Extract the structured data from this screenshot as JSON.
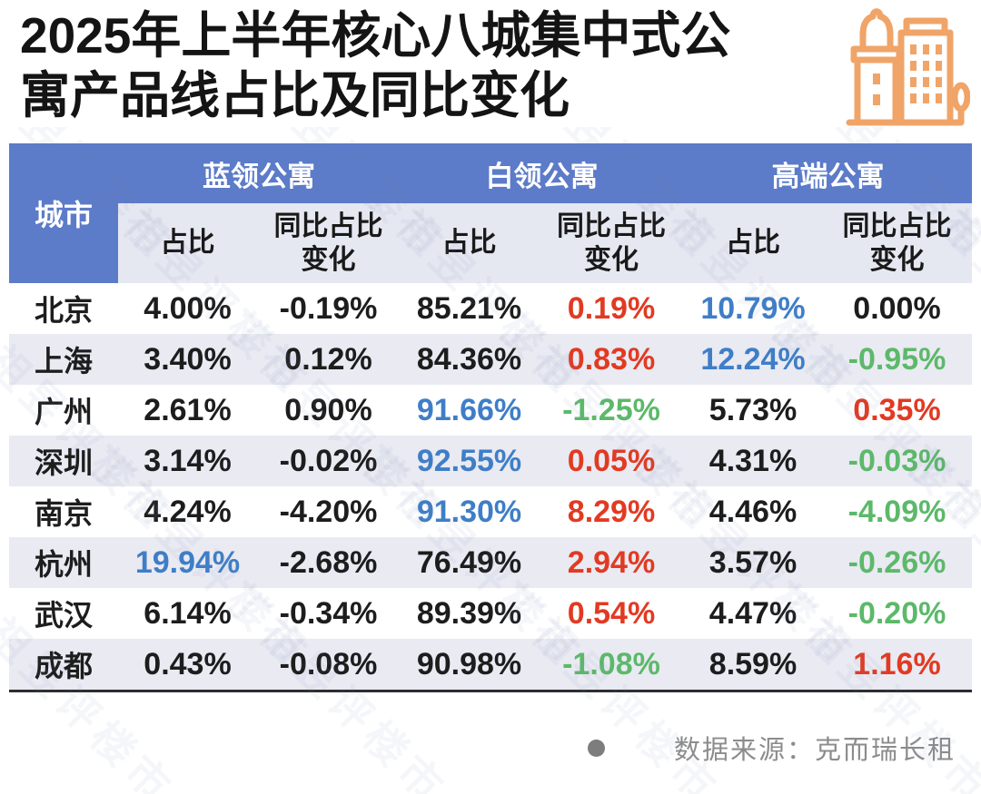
{
  "title": {
    "line1": "2025年上半年核心八城集中式公",
    "line2": "寓产品线占比及同比变化"
  },
  "header": {
    "city": "城市",
    "groups": [
      {
        "label": "蓝领公寓"
      },
      {
        "label": "白领公寓"
      },
      {
        "label": "高端公寓"
      }
    ],
    "sub": {
      "share": "占比",
      "yoy": "同比占比变化"
    }
  },
  "table": {
    "rows": [
      {
        "city": "北京",
        "cells": [
          {
            "v": "4.00%",
            "c": "black"
          },
          {
            "v": "-0.19%",
            "c": "black"
          },
          {
            "v": "85.21%",
            "c": "black"
          },
          {
            "v": "0.19%",
            "c": "red"
          },
          {
            "v": "10.79%",
            "c": "blue"
          },
          {
            "v": "0.00%",
            "c": "black"
          }
        ]
      },
      {
        "city": "上海",
        "cells": [
          {
            "v": "3.40%",
            "c": "black"
          },
          {
            "v": "0.12%",
            "c": "black"
          },
          {
            "v": "84.36%",
            "c": "black"
          },
          {
            "v": "0.83%",
            "c": "red"
          },
          {
            "v": "12.24%",
            "c": "blue"
          },
          {
            "v": "-0.95%",
            "c": "green"
          }
        ]
      },
      {
        "city": "广州",
        "cells": [
          {
            "v": "2.61%",
            "c": "black"
          },
          {
            "v": "0.90%",
            "c": "black"
          },
          {
            "v": "91.66%",
            "c": "blue"
          },
          {
            "v": "-1.25%",
            "c": "green"
          },
          {
            "v": "5.73%",
            "c": "black"
          },
          {
            "v": "0.35%",
            "c": "red"
          }
        ]
      },
      {
        "city": "深圳",
        "cells": [
          {
            "v": "3.14%",
            "c": "black"
          },
          {
            "v": "-0.02%",
            "c": "black"
          },
          {
            "v": "92.55%",
            "c": "blue"
          },
          {
            "v": "0.05%",
            "c": "red"
          },
          {
            "v": "4.31%",
            "c": "black"
          },
          {
            "v": "-0.03%",
            "c": "green"
          }
        ]
      },
      {
        "city": "南京",
        "cells": [
          {
            "v": "4.24%",
            "c": "black"
          },
          {
            "v": "-4.20%",
            "c": "black"
          },
          {
            "v": "91.30%",
            "c": "blue"
          },
          {
            "v": "8.29%",
            "c": "red"
          },
          {
            "v": "4.46%",
            "c": "black"
          },
          {
            "v": "-4.09%",
            "c": "green"
          }
        ]
      },
      {
        "city": "杭州",
        "cells": [
          {
            "v": "19.94%",
            "c": "blue"
          },
          {
            "v": "-2.68%",
            "c": "black"
          },
          {
            "v": "76.49%",
            "c": "black"
          },
          {
            "v": "2.94%",
            "c": "red"
          },
          {
            "v": "3.57%",
            "c": "black"
          },
          {
            "v": "-0.26%",
            "c": "green"
          }
        ]
      },
      {
        "city": "武汉",
        "cells": [
          {
            "v": "6.14%",
            "c": "black"
          },
          {
            "v": "-0.34%",
            "c": "black"
          },
          {
            "v": "89.39%",
            "c": "black"
          },
          {
            "v": "0.54%",
            "c": "red"
          },
          {
            "v": "4.47%",
            "c": "black"
          },
          {
            "v": "-0.20%",
            "c": "green"
          }
        ]
      },
      {
        "city": "成都",
        "cells": [
          {
            "v": "0.43%",
            "c": "black"
          },
          {
            "v": "-0.08%",
            "c": "black"
          },
          {
            "v": "90.98%",
            "c": "black"
          },
          {
            "v": "-1.08%",
            "c": "green"
          },
          {
            "v": "8.59%",
            "c": "black"
          },
          {
            "v": "1.16%",
            "c": "red"
          }
        ]
      }
    ]
  },
  "footer": {
    "source": "数据来源：克而瑞长租"
  },
  "watermark": {
    "text": "丁祖昱评楼市"
  },
  "colors": {
    "black": "#1d1d1d",
    "red": "#E23A22",
    "green": "#5CB96A",
    "blue": "#3F7EC7",
    "header_blue": "#5C7BC9",
    "row_alt": "#E9EAF2",
    "subheader_bg": "#E6E8F1",
    "accent_orange": "#F0A468",
    "source_gray": "#8c8c8c"
  },
  "chart_data": {
    "type": "table",
    "title": "2025年上半年核心八城集中式公寓产品线占比及同比变化",
    "column_groups": [
      "蓝领公寓",
      "白领公寓",
      "高端公寓"
    ],
    "columns": [
      "城市",
      "蓝领公寓-占比",
      "蓝领公寓-同比占比变化",
      "白领公寓-占比",
      "白领公寓-同比占比变化",
      "高端公寓-占比",
      "高端公寓-同比占比变化"
    ],
    "rows": [
      [
        "北京",
        "4.00%",
        "-0.19%",
        "85.21%",
        "0.19%",
        "10.79%",
        "0.00%"
      ],
      [
        "上海",
        "3.40%",
        "0.12%",
        "84.36%",
        "0.83%",
        "12.24%",
        "-0.95%"
      ],
      [
        "广州",
        "2.61%",
        "0.90%",
        "91.66%",
        "-1.25%",
        "5.73%",
        "0.35%"
      ],
      [
        "深圳",
        "3.14%",
        "-0.02%",
        "92.55%",
        "0.05%",
        "4.31%",
        "-0.03%"
      ],
      [
        "南京",
        "4.24%",
        "-4.20%",
        "91.30%",
        "8.29%",
        "4.46%",
        "-4.09%"
      ],
      [
        "杭州",
        "19.94%",
        "-2.68%",
        "76.49%",
        "2.94%",
        "3.57%",
        "-0.26%"
      ],
      [
        "武汉",
        "6.14%",
        "-0.34%",
        "89.39%",
        "0.54%",
        "4.47%",
        "-0.20%"
      ],
      [
        "成都",
        "0.43%",
        "-0.08%",
        "90.98%",
        "-1.08%",
        "8.59%",
        "1.16%"
      ]
    ],
    "source": "数据来源：克而瑞长租"
  }
}
